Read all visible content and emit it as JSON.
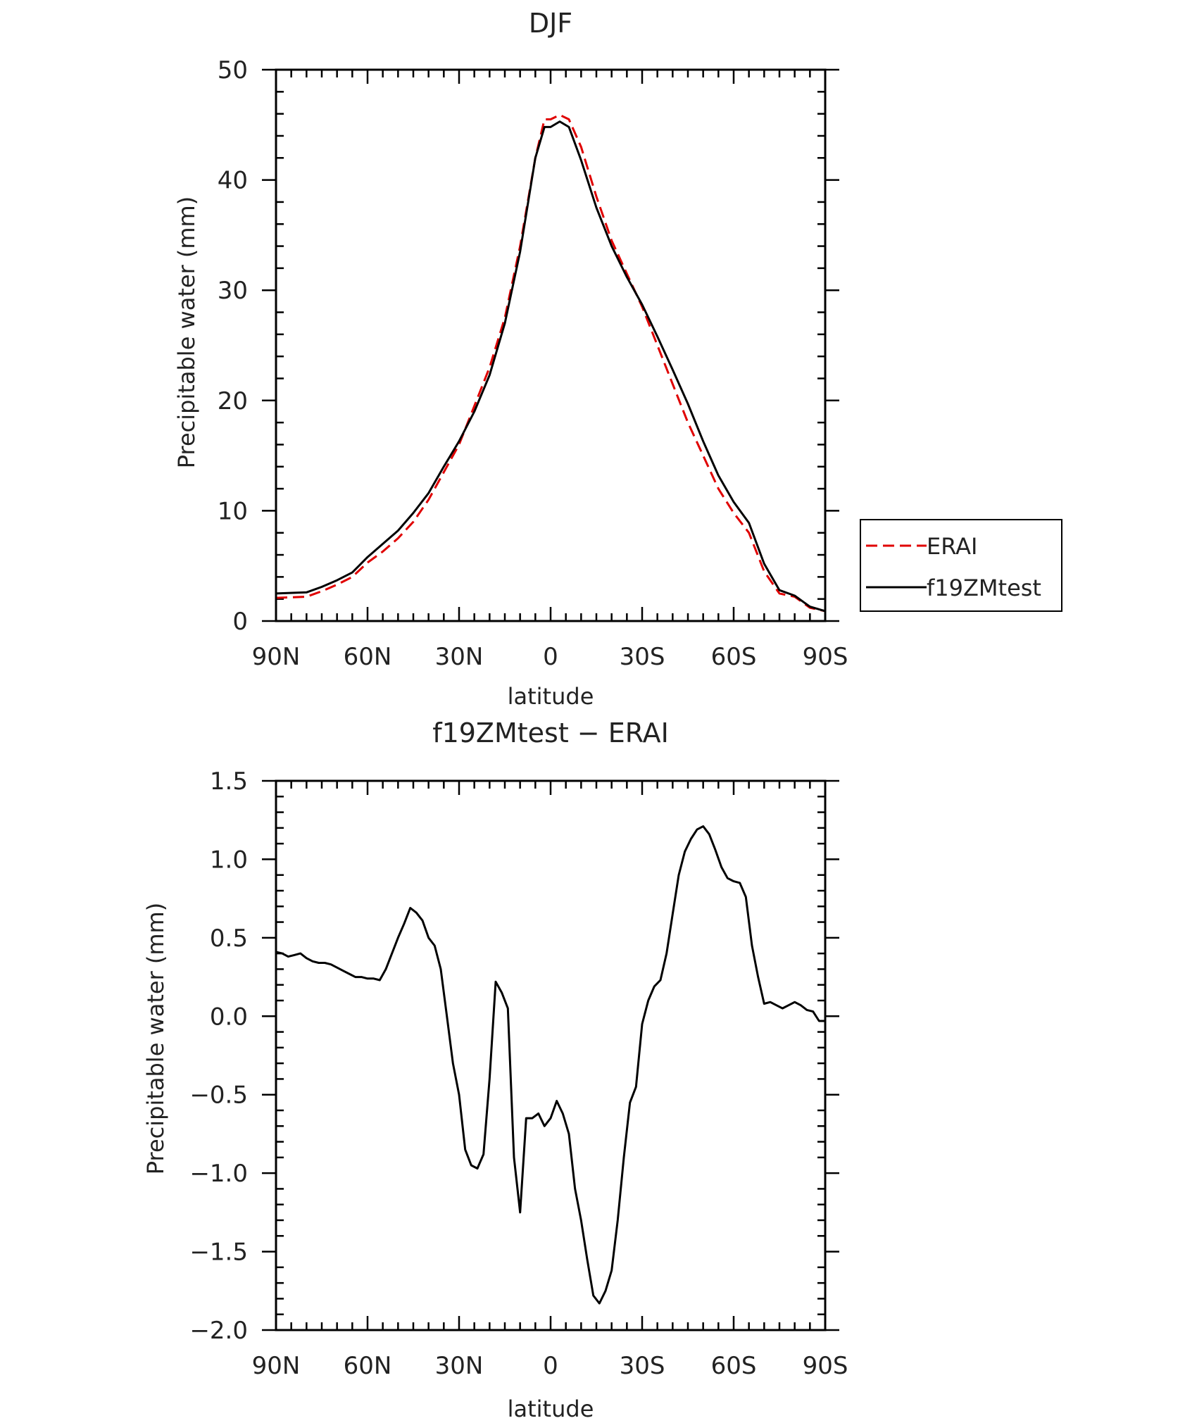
{
  "chart_data": [
    {
      "type": "line",
      "title": "DJF",
      "xlabel": "latitude",
      "ylabel": "Precipitable water (mm)",
      "xlim": [
        90,
        -90
      ],
      "ylim": [
        0,
        50
      ],
      "xticks": [
        90,
        60,
        30,
        0,
        -30,
        -60,
        -90
      ],
      "xtick_labels": [
        "90N",
        "60N",
        "30N",
        "0",
        "30S",
        "60S",
        "90S"
      ],
      "yticks": [
        0,
        10,
        20,
        30,
        40,
        50
      ],
      "ytick_labels": [
        "0",
        "10",
        "20",
        "30",
        "40",
        "50"
      ],
      "legend_position": "right",
      "series": [
        {
          "name": "ERAI",
          "color": "#e00000",
          "dash": "dashed",
          "x": [
            90,
            80,
            75,
            70,
            65,
            60,
            55,
            50,
            45,
            40,
            35,
            30,
            25,
            20,
            15,
            10,
            5,
            2,
            0,
            -3,
            -6,
            -10,
            -15,
            -20,
            -25,
            -30,
            -35,
            -40,
            -45,
            -50,
            -55,
            -60,
            -65,
            -70,
            -75,
            -80,
            -85,
            -90
          ],
          "values": [
            2.1,
            2.2,
            2.7,
            3.3,
            4.0,
            5.3,
            6.3,
            7.5,
            9.0,
            11.0,
            13.5,
            16.0,
            19.5,
            23.0,
            27.5,
            34.0,
            42.0,
            45.5,
            45.5,
            45.9,
            45.5,
            43.0,
            38.5,
            34.5,
            31.5,
            28.5,
            25.0,
            21.5,
            18.0,
            15.0,
            12.0,
            9.8,
            8.0,
            4.5,
            2.5,
            2.2,
            1.2,
            0.9
          ]
        },
        {
          "name": "f19ZMtest",
          "color": "#000000",
          "dash": "solid",
          "x": [
            90,
            80,
            75,
            70,
            65,
            60,
            55,
            50,
            45,
            40,
            35,
            30,
            25,
            20,
            15,
            10,
            5,
            2,
            0,
            -3,
            -6,
            -10,
            -15,
            -20,
            -25,
            -30,
            -35,
            -40,
            -45,
            -50,
            -55,
            -60,
            -65,
            -70,
            -75,
            -80,
            -85,
            -90
          ],
          "values": [
            2.5,
            2.6,
            3.1,
            3.7,
            4.4,
            5.8,
            7.0,
            8.2,
            9.8,
            11.6,
            14.0,
            16.3,
            19.0,
            22.3,
            27.0,
            33.5,
            42.0,
            44.8,
            44.8,
            45.3,
            44.8,
            41.8,
            37.5,
            34.0,
            31.2,
            28.7,
            25.8,
            22.8,
            19.7,
            16.3,
            13.2,
            10.8,
            8.9,
            5.2,
            2.8,
            2.3,
            1.3,
            0.9
          ]
        }
      ]
    },
    {
      "type": "line",
      "title": "f19ZMtest − ERAI",
      "xlabel": "latitude",
      "ylabel": "Precipitable water (mm)",
      "xlim": [
        90,
        -90
      ],
      "ylim": [
        -2.0,
        1.5
      ],
      "xticks": [
        90,
        60,
        30,
        0,
        -30,
        -60,
        -90
      ],
      "xtick_labels": [
        "90N",
        "60N",
        "30N",
        "0",
        "30S",
        "60S",
        "90S"
      ],
      "yticks": [
        -2.0,
        -1.5,
        -1.0,
        -0.5,
        0.0,
        0.5,
        1.0,
        1.5
      ],
      "ytick_labels": [
        "−2.0",
        "−1.5",
        "−1.0",
        "−0.5",
        "0.0",
        "0.5",
        "1.0",
        "1.5"
      ],
      "series": [
        {
          "color": "#000000",
          "dash": "solid",
          "x": [
            90,
            88,
            86,
            84,
            82,
            80,
            78,
            76,
            74,
            72,
            70,
            68,
            66,
            64,
            62,
            60,
            58,
            56,
            54,
            52,
            50,
            48,
            46,
            44,
            42,
            40,
            38,
            36,
            34,
            32,
            30,
            28,
            26,
            24,
            22,
            20,
            18,
            16,
            14,
            12,
            10,
            8,
            6,
            4,
            2,
            0,
            -2,
            -4,
            -6,
            -8,
            -10,
            -12,
            -14,
            -16,
            -18,
            -20,
            -22,
            -24,
            -26,
            -28,
            -30,
            -32,
            -34,
            -36,
            -38,
            -40,
            -42,
            -44,
            -46,
            -48,
            -50,
            -52,
            -54,
            -56,
            -58,
            -60,
            -62,
            -64,
            -66,
            -68,
            -70,
            -72,
            -74,
            -76,
            -78,
            -80,
            -82,
            -84,
            -86,
            -88,
            -90
          ],
          "values": [
            0.41,
            0.4,
            0.38,
            0.39,
            0.4,
            0.37,
            0.35,
            0.34,
            0.34,
            0.33,
            0.31,
            0.29,
            0.27,
            0.25,
            0.25,
            0.24,
            0.24,
            0.23,
            0.3,
            0.4,
            0.5,
            0.59,
            0.69,
            0.66,
            0.61,
            0.5,
            0.45,
            0.3,
            0.0,
            -0.3,
            -0.5,
            -0.85,
            -0.95,
            -0.97,
            -0.88,
            -0.4,
            0.22,
            0.15,
            0.05,
            -0.9,
            -1.25,
            -0.65,
            -0.65,
            -0.62,
            -0.7,
            -0.65,
            -0.54,
            -0.62,
            -0.75,
            -1.1,
            -1.3,
            -1.55,
            -1.78,
            -1.83,
            -1.75,
            -1.62,
            -1.3,
            -0.9,
            -0.55,
            -0.45,
            -0.05,
            0.1,
            0.19,
            0.23,
            0.4,
            0.65,
            0.9,
            1.05,
            1.13,
            1.19,
            1.21,
            1.16,
            1.06,
            0.95,
            0.88,
            0.86,
            0.85,
            0.76,
            0.45,
            0.25,
            0.08,
            0.09,
            0.07,
            0.05,
            0.07,
            0.09,
            0.07,
            0.04,
            0.03,
            -0.03,
            -0.03
          ]
        }
      ]
    }
  ],
  "legend": {
    "items": [
      {
        "label": "ERAI",
        "color": "#e00000",
        "dash": "dashed"
      },
      {
        "label": "f19ZMtest",
        "color": "#000000",
        "dash": "solid"
      }
    ]
  }
}
